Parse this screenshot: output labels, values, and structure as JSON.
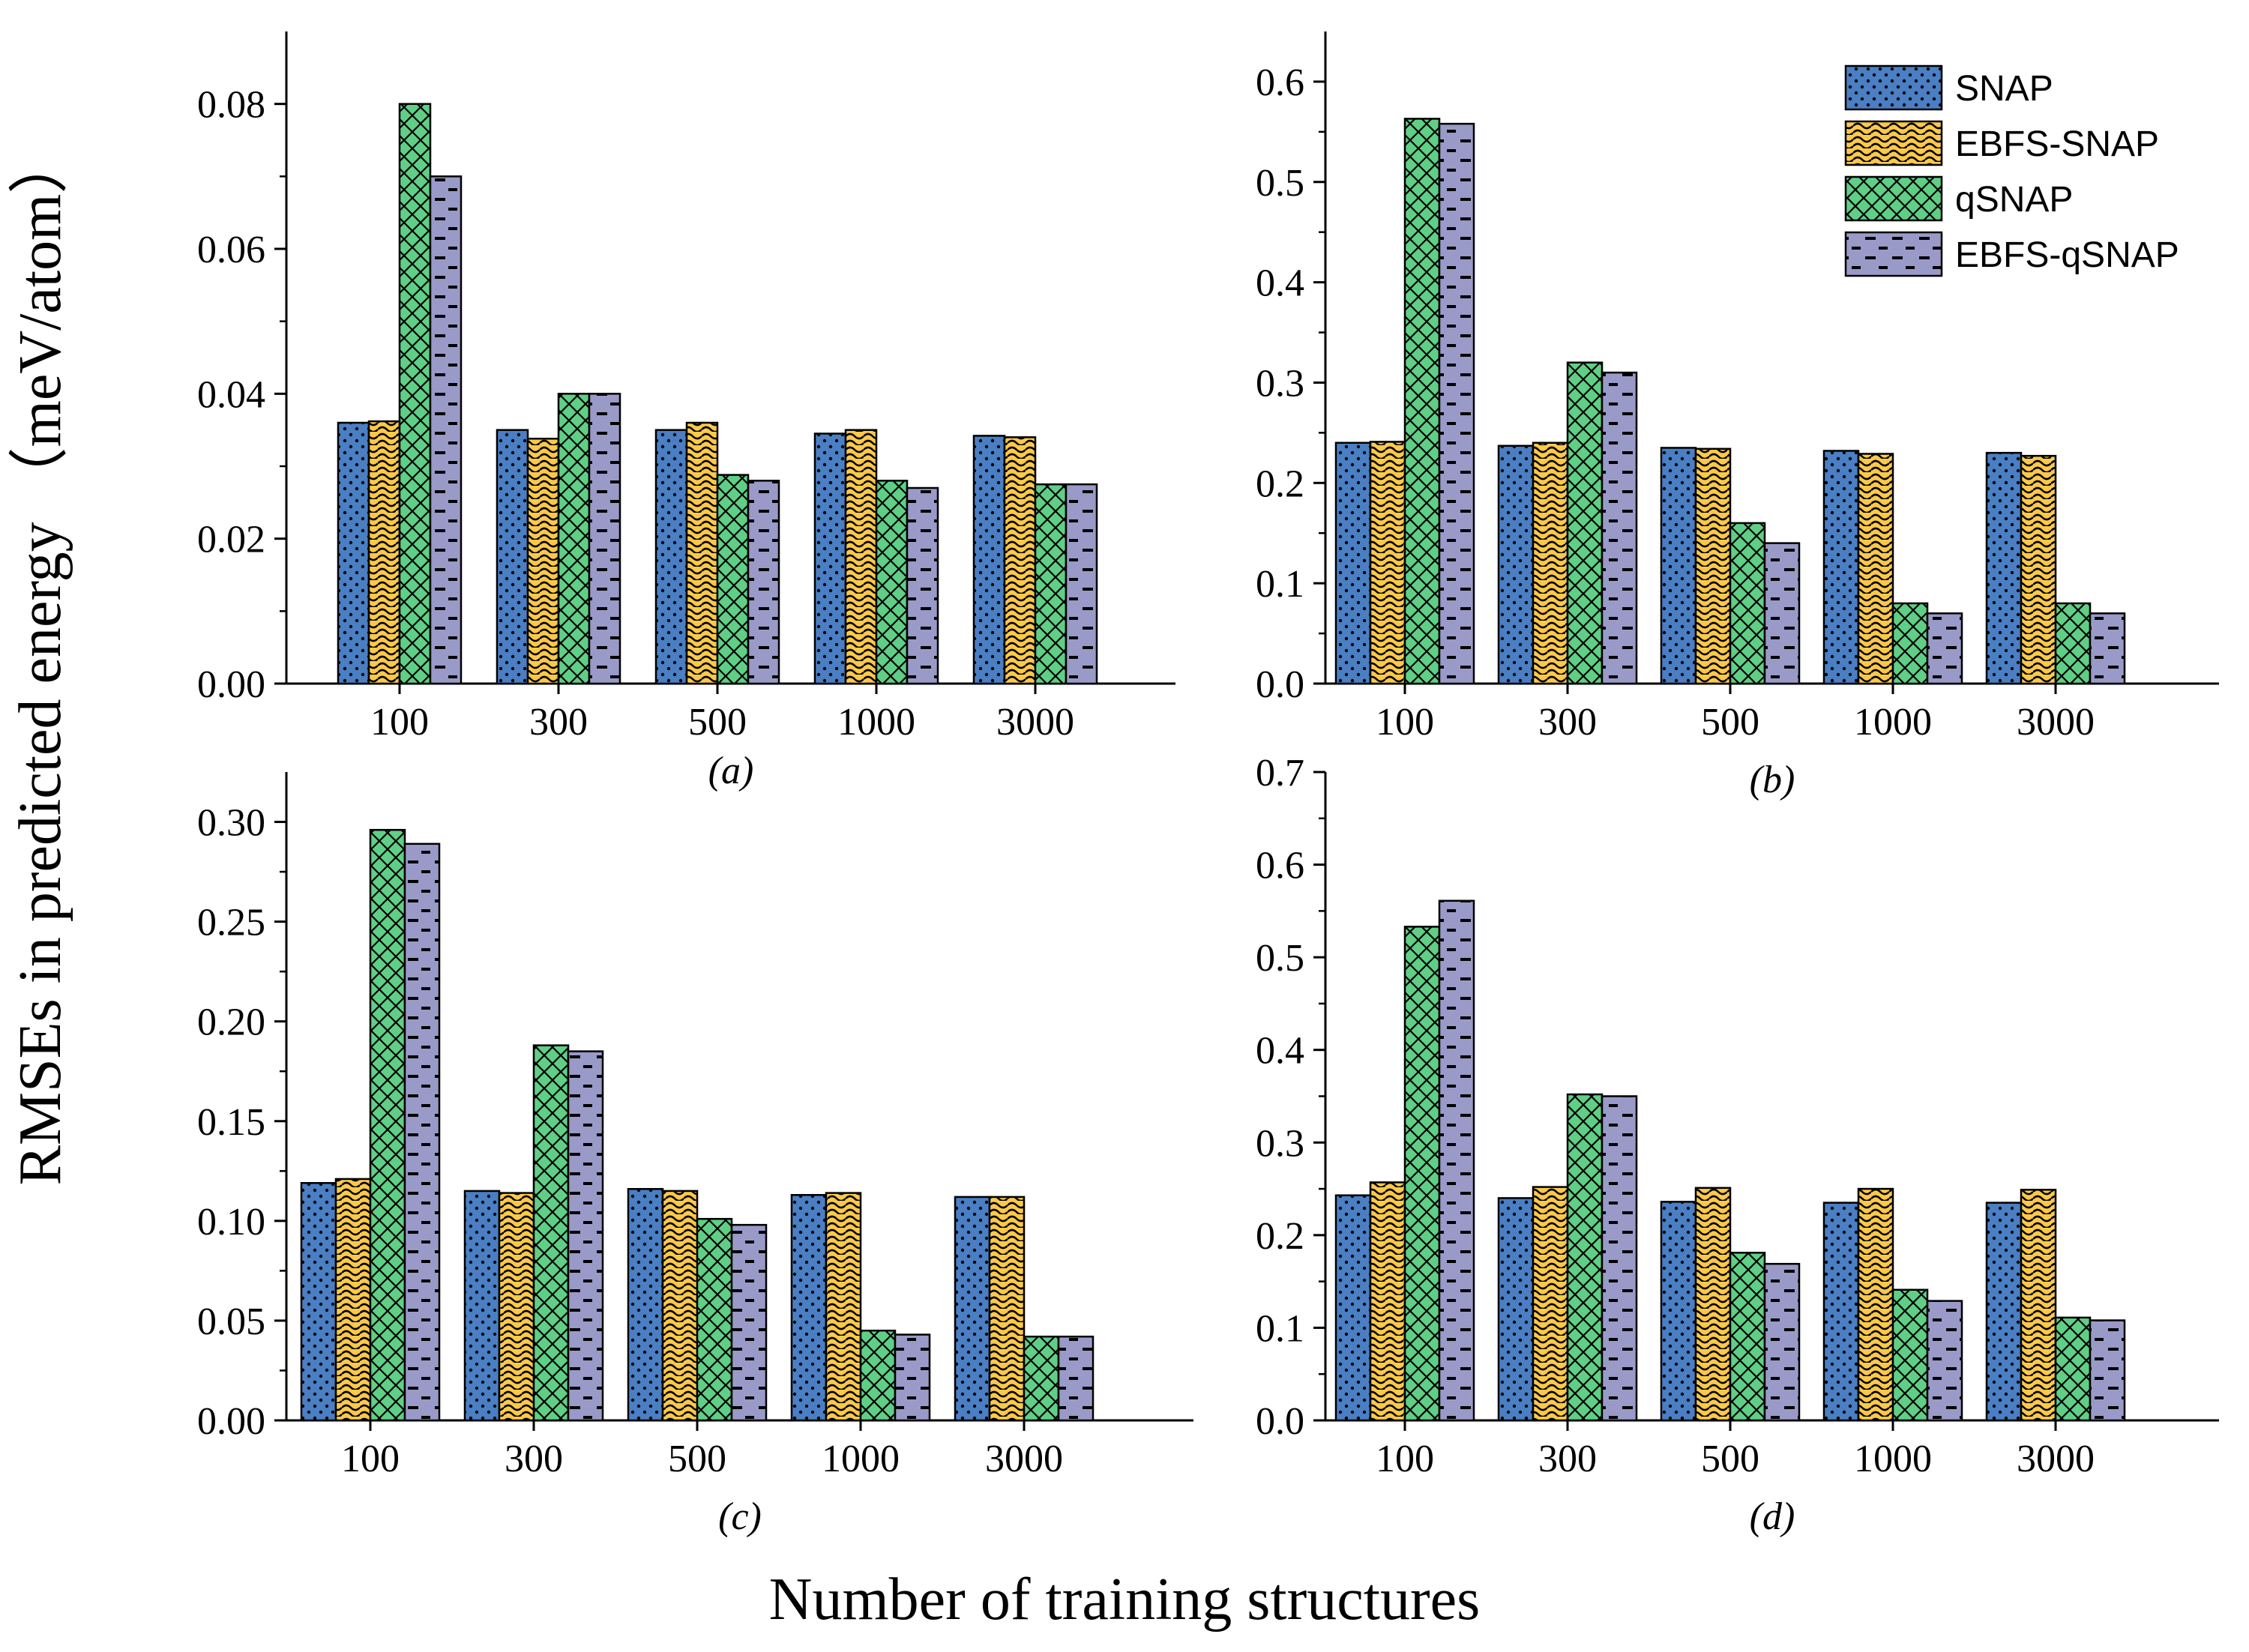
{
  "figure": {
    "ylabel": "RMSEs in predicted energy （meV/atom）",
    "xlabel": "Number of training structures"
  },
  "legend": [
    {
      "name": "SNAP",
      "color": "#4a7fc4",
      "pattern": "dots"
    },
    {
      "name": "EBFS-SNAP",
      "color": "#fbc94a",
      "pattern": "wave"
    },
    {
      "name": "qSNAP",
      "color": "#5fcf86",
      "pattern": "crosshatch"
    },
    {
      "name": "EBFS-qSNAP",
      "color": "#9a9ac8",
      "pattern": "dashes"
    }
  ],
  "chart_data": [
    {
      "type": "bar",
      "panel": "a",
      "caption": "(a)",
      "categories": [
        "100",
        "300",
        "500",
        "1000",
        "3000"
      ],
      "ylim": [
        0,
        0.09
      ],
      "yticks": [
        0.0,
        0.02,
        0.04,
        0.06,
        0.08
      ],
      "ytick_labels": [
        "0.00",
        "0.02",
        "0.04",
        "0.06",
        "0.08"
      ],
      "series": [
        {
          "name": "SNAP",
          "values": [
            0.036,
            0.035,
            0.035,
            0.0345,
            0.0342
          ]
        },
        {
          "name": "EBFS-SNAP",
          "values": [
            0.0362,
            0.0338,
            0.036,
            0.035,
            0.034
          ]
        },
        {
          "name": "qSNAP",
          "values": [
            0.08,
            0.04,
            0.0288,
            0.028,
            0.0275
          ]
        },
        {
          "name": "EBFS-qSNAP",
          "values": [
            0.07,
            0.04,
            0.028,
            0.027,
            0.0275
          ]
        }
      ]
    },
    {
      "type": "bar",
      "panel": "b",
      "caption": "(b)",
      "categories": [
        "100",
        "300",
        "500",
        "1000",
        "3000"
      ],
      "ylim": [
        0,
        0.65
      ],
      "yticks": [
        0.0,
        0.1,
        0.2,
        0.3,
        0.4,
        0.5,
        0.6
      ],
      "ytick_labels": [
        "0.0",
        "0.1",
        "0.2",
        "0.3",
        "0.4",
        "0.5",
        "0.6"
      ],
      "series": [
        {
          "name": "SNAP",
          "values": [
            0.24,
            0.237,
            0.235,
            0.232,
            0.23
          ]
        },
        {
          "name": "EBFS-SNAP",
          "values": [
            0.241,
            0.24,
            0.234,
            0.229,
            0.227
          ]
        },
        {
          "name": "qSNAP",
          "values": [
            0.563,
            0.32,
            0.16,
            0.08,
            0.08
          ]
        },
        {
          "name": "EBFS-qSNAP",
          "values": [
            0.558,
            0.31,
            0.14,
            0.07,
            0.07
          ]
        }
      ]
    },
    {
      "type": "bar",
      "panel": "c",
      "caption": "(c)",
      "categories": [
        "100",
        "300",
        "500",
        "1000",
        "3000"
      ],
      "ylim": [
        0,
        0.325
      ],
      "yticks": [
        0.0,
        0.05,
        0.1,
        0.15,
        0.2,
        0.25,
        0.3
      ],
      "ytick_labels": [
        "0.00",
        "0.05",
        "0.10",
        "0.15",
        "0.20",
        "0.25",
        "0.30"
      ],
      "series": [
        {
          "name": "SNAP",
          "values": [
            0.119,
            0.115,
            0.116,
            0.113,
            0.112
          ]
        },
        {
          "name": "EBFS-SNAP",
          "values": [
            0.121,
            0.114,
            0.115,
            0.114,
            0.112
          ]
        },
        {
          "name": "qSNAP",
          "values": [
            0.296,
            0.188,
            0.101,
            0.045,
            0.042
          ]
        },
        {
          "name": "EBFS-qSNAP",
          "values": [
            0.289,
            0.185,
            0.098,
            0.043,
            0.042
          ]
        }
      ]
    },
    {
      "type": "bar",
      "panel": "d",
      "caption": "(d)",
      "categories": [
        "100",
        "300",
        "500",
        "1000",
        "3000"
      ],
      "ylim": [
        0,
        0.7
      ],
      "yticks": [
        0.0,
        0.1,
        0.2,
        0.3,
        0.4,
        0.5,
        0.6,
        0.7
      ],
      "ytick_labels": [
        "0.0",
        "0.1",
        "0.2",
        "0.3",
        "0.4",
        "0.5",
        "0.6",
        "0.7"
      ],
      "series": [
        {
          "name": "SNAP",
          "values": [
            0.243,
            0.24,
            0.236,
            0.235,
            0.235
          ]
        },
        {
          "name": "EBFS-SNAP",
          "values": [
            0.257,
            0.252,
            0.251,
            0.25,
            0.249
          ]
        },
        {
          "name": "qSNAP",
          "values": [
            0.533,
            0.352,
            0.181,
            0.141,
            0.111
          ]
        },
        {
          "name": "EBFS-qSNAP",
          "values": [
            0.561,
            0.35,
            0.169,
            0.129,
            0.108
          ]
        }
      ]
    }
  ]
}
